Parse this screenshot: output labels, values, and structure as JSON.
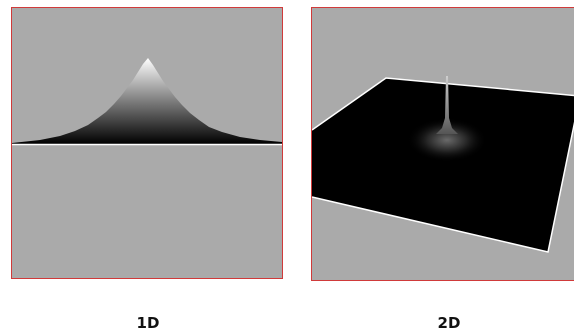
{
  "panels": [
    {
      "label": "1D"
    },
    {
      "label": "2D"
    }
  ]
}
